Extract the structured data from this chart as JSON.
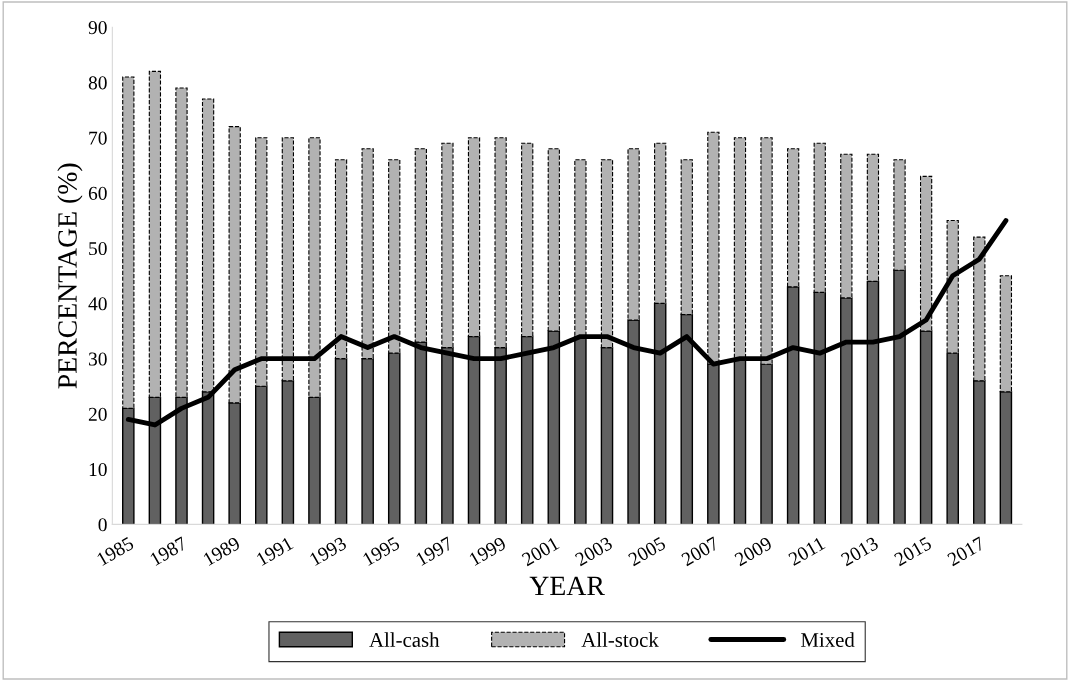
{
  "chart_data": {
    "type": "bar",
    "stacked": true,
    "xlabel": "YEAR",
    "ylabel": "PERCENTAGE (%)",
    "categories": [
      "1985",
      null,
      "1987",
      null,
      "1989",
      null,
      "1991",
      null,
      "1993",
      null,
      "1995",
      null,
      "1997",
      null,
      "1999",
      null,
      "2001",
      null,
      "2003",
      null,
      "2005",
      null,
      "2007",
      null,
      "2009",
      null,
      "2011",
      null,
      "2013",
      null,
      "2015",
      null,
      "2017",
      null
    ],
    "series": [
      {
        "name": "All-cash",
        "color": "#616161",
        "values": [
          21,
          23,
          23,
          24,
          22,
          25,
          26,
          23,
          30,
          30,
          31,
          33,
          32,
          34,
          32,
          34,
          35,
          34,
          32,
          37,
          40,
          38,
          29,
          30,
          29,
          43,
          42,
          41,
          44,
          46,
          35,
          31,
          26,
          24
        ]
      },
      {
        "name": "All-stock",
        "color": "#b2b2b2",
        "line_style": "dashed",
        "values": [
          60,
          59,
          56,
          53,
          50,
          45,
          44,
          47,
          36,
          38,
          35,
          35,
          37,
          36,
          38,
          35,
          33,
          32,
          34,
          31,
          29,
          28,
          42,
          40,
          41,
          25,
          27,
          26,
          23,
          20,
          28,
          24,
          26,
          21
        ]
      },
      {
        "name": "Mixed",
        "type": "line",
        "color": "#000000",
        "values": [
          19,
          18,
          21,
          23,
          28,
          30,
          30,
          30,
          34,
          32,
          34,
          32,
          31,
          30,
          30,
          31,
          32,
          34,
          34,
          32,
          31,
          34,
          29,
          30,
          30,
          32,
          31,
          33,
          33,
          34,
          37,
          45,
          48,
          55
        ]
      }
    ],
    "ylim": [
      0,
      90
    ],
    "yticks": [
      0,
      10,
      20,
      30,
      40,
      50,
      60,
      70,
      80,
      90
    ],
    "grid": false,
    "legend": "bottom"
  }
}
